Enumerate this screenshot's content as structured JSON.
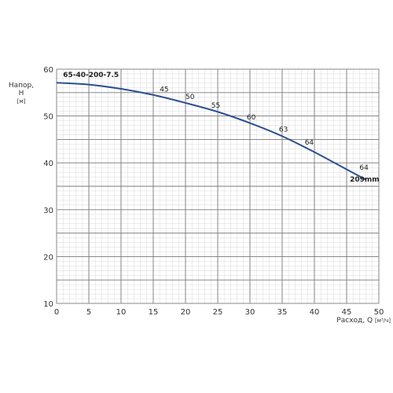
{
  "chart_data": {
    "type": "line",
    "xlim": [
      0,
      50
    ],
    "ylim": [
      10,
      60
    ],
    "x_ticks": [
      0,
      5,
      10,
      15,
      20,
      25,
      30,
      35,
      40,
      45,
      50
    ],
    "y_ticks": [
      10,
      20,
      30,
      40,
      50,
      60
    ],
    "grid": "major and minor",
    "ylabel": {
      "line1": "Напор,",
      "line2": "H",
      "unit": "[м]"
    },
    "xlabel": {
      "text": "Расход,",
      "symbol": "Q",
      "unit": "[м³/ч]"
    },
    "series": [
      {
        "name": "65-40-200-7.5",
        "color": "#2b4f93",
        "x": [
          0,
          5,
          10,
          15,
          20,
          25,
          30,
          35,
          40,
          45,
          48
        ],
        "y": [
          57.1,
          56.7,
          55.8,
          54.5,
          52.8,
          50.9,
          48.5,
          45.7,
          42.3,
          38.6,
          36.4
        ]
      }
    ],
    "annotations": [
      {
        "text": "65-40-200-7.5",
        "x": 1,
        "y": 58.3,
        "bold": true
      },
      {
        "text": "45",
        "x": 16,
        "y": 55.2
      },
      {
        "text": "50",
        "x": 20,
        "y": 53.6
      },
      {
        "text": "55",
        "x": 24,
        "y": 51.8
      },
      {
        "text": "60",
        "x": 29.5,
        "y": 49.3
      },
      {
        "text": "63",
        "x": 34.5,
        "y": 46.7
      },
      {
        "text": "64",
        "x": 38.5,
        "y": 43.9
      },
      {
        "text": "64",
        "x": 47,
        "y": 38.5
      },
      {
        "text": "209mm",
        "x": 45.5,
        "y": 36,
        "bold": true
      }
    ]
  }
}
